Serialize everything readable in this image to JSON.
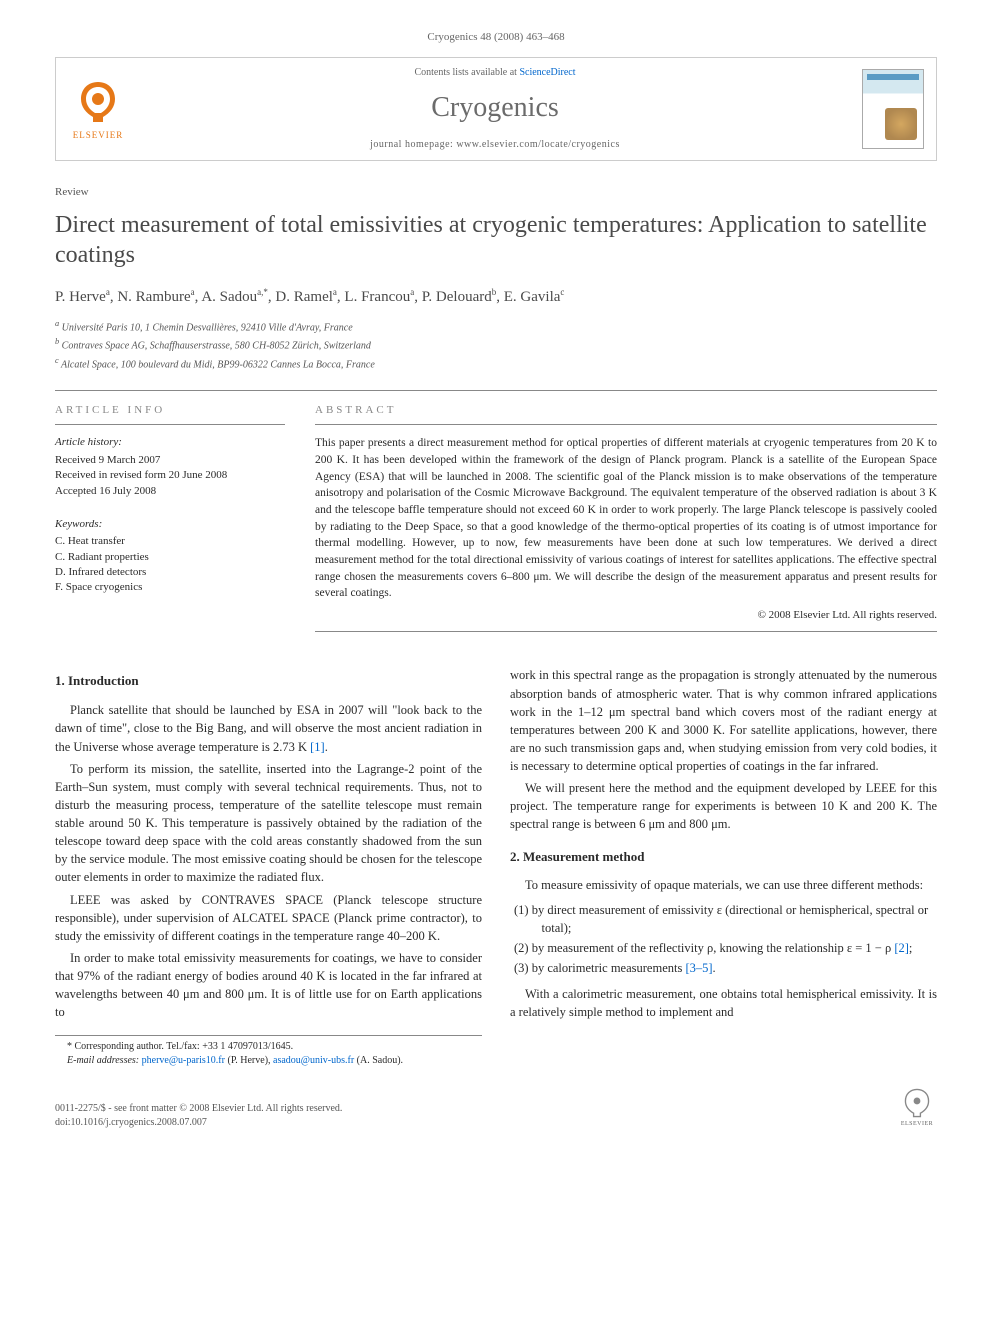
{
  "header": {
    "citation": "Cryogenics 48 (2008) 463–468"
  },
  "banner": {
    "contents_prefix": "Contents lists available at ",
    "contents_link": "ScienceDirect",
    "journal": "Cryogenics",
    "homepage_prefix": "journal homepage: ",
    "homepage": "www.elsevier.com/locate/cryogenics",
    "elsevier_label": "ELSEVIER",
    "cover_label": "CRYOGENICS"
  },
  "article": {
    "type": "Review",
    "title": "Direct measurement of total emissivities at cryogenic temperatures: Application to satellite coatings",
    "authors_html": "P. Herve<sup>a</sup>, N. Rambure<sup>a</sup>, A. Sadou<sup>a,*</sup>, D. Ramel<sup>a</sup>, L. Francou<sup>a</sup>, P. Delouard<sup>b</sup>, E. Gavila<sup>c</sup>",
    "affiliations": [
      "<sup>a</sup> Université Paris 10, 1 Chemin Desvallières, 92410 Ville d'Avray, France",
      "<sup>b</sup> Contraves Space AG, Schaffhauserstrasse, 580 CH-8052 Zürich, Switzerland",
      "<sup>c</sup> Alcatel Space, 100 boulevard du Midi, BP99-06322 Cannes La Bocca, France"
    ]
  },
  "info": {
    "heading": "ARTICLE INFO",
    "history_label": "Article history:",
    "history": [
      "Received 9 March 2007",
      "Received in revised form 20 June 2008",
      "Accepted 16 July 2008"
    ],
    "keywords_label": "Keywords:",
    "keywords": [
      "C. Heat transfer",
      "C. Radiant properties",
      "D. Infrared detectors",
      "F. Space cryogenics"
    ]
  },
  "abstract": {
    "heading": "ABSTRACT",
    "text": "This paper presents a direct measurement method for optical properties of different materials at cryogenic temperatures from 20 K to 200 K. It has been developed within the framework of the design of Planck program. Planck is a satellite of the European Space Agency (ESA) that will be launched in 2008. The scientific goal of the Planck mission is to make observations of the temperature anisotropy and polarisation of the Cosmic Microwave Background. The equivalent temperature of the observed radiation is about 3 K and the telescope baffle temperature should not exceed 60 K in order to work properly. The large Planck telescope is passively cooled by radiating to the Deep Space, so that a good knowledge of the thermo-optical properties of its coating is of utmost importance for thermal modelling. However, up to now, few measurements have been done at such low temperatures. We derived a direct measurement method for the total directional emissivity of various coatings of interest for satellites applications. The effective spectral range chosen the measurements covers 6–800 μm. We will describe the design of the measurement apparatus and present results for several coatings.",
    "copyright": "© 2008 Elsevier Ltd. All rights reserved."
  },
  "body": {
    "sec1_heading": "1. Introduction",
    "sec1_p1": "Planck satellite that should be launched by ESA in 2007 will \"look back to the dawn of time\", close to the Big Bang, and will observe the most ancient radiation in the Universe whose average temperature is 2.73 K ",
    "sec1_ref1": "[1]",
    "sec1_p1_tail": ".",
    "sec1_p2": "To perform its mission, the satellite, inserted into the Lagrange-2 point of the Earth–Sun system, must comply with several technical requirements. Thus, not to disturb the measuring process, temperature of the satellite telescope must remain stable around 50 K. This temperature is passively obtained by the radiation of the telescope toward deep space with the cold areas constantly shadowed from the sun by the service module. The most emissive coating should be chosen for the telescope outer elements in order to maximize the radiated flux.",
    "sec1_p3": "LEEE was asked by CONTRAVES SPACE (Planck telescope structure responsible), under supervision of ALCATEL SPACE (Planck prime contractor), to study the emissivity of different coatings in the temperature range 40–200 K.",
    "sec1_p4": "In order to make total emissivity measurements for coatings, we have to consider that 97% of the radiant energy of bodies around 40 K is located in the far infrared at wavelengths between 40 μm and 800 μm. It is of little use for on Earth applications to",
    "sec1_p5": "work in this spectral range as the propagation is strongly attenuated by the numerous absorption bands of atmospheric water. That is why common infrared applications work in the 1–12 μm spectral band which covers most of the radiant energy at temperatures between 200 K and 3000 K. For satellite applications, however, there are no such transmission gaps and, when studying emission from very cold bodies, it is necessary to determine optical properties of coatings in the far infrared.",
    "sec1_p6": "We will present here the method and the equipment developed by LEEE for this project. The temperature range for experiments is between 10 K and 200 K. The spectral range is between 6 μm and 800 μm.",
    "sec2_heading": "2. Measurement method",
    "sec2_p1": "To measure emissivity of opaque materials, we can use three different methods:",
    "methods": [
      "(1) by direct measurement of emissivity ε (directional or hemispherical, spectral or total);",
      "(2) by measurement of the reflectivity ρ, knowing the relationship ε = 1 − ρ ",
      "(3) by calorimetric measurements "
    ],
    "method2_ref": "[2]",
    "method2_tail": ";",
    "method3_ref": "[3–5]",
    "method3_tail": ".",
    "sec2_p2": "With a calorimetric measurement, one obtains total hemispherical emissivity. It is a relatively simple method to implement and"
  },
  "correspondence": {
    "star": "* Corresponding author. Tel./fax: +33 1 47097013/1645.",
    "email_label": "E-mail addresses:",
    "email1": "pherve@u-paris10.fr",
    "email1_who": " (P. Herve), ",
    "email2": "asadou@univ-ubs.fr",
    "email2_who": " (A. Sadou)."
  },
  "footer": {
    "line1": "0011-2275/$ - see front matter © 2008 Elsevier Ltd. All rights reserved.",
    "line2": "doi:10.1016/j.cryogenics.2008.07.007"
  },
  "colors": {
    "link": "#0066cc",
    "elsevier_orange": "#e67817",
    "heading_gray": "#888888",
    "text": "#2a2a2a"
  }
}
